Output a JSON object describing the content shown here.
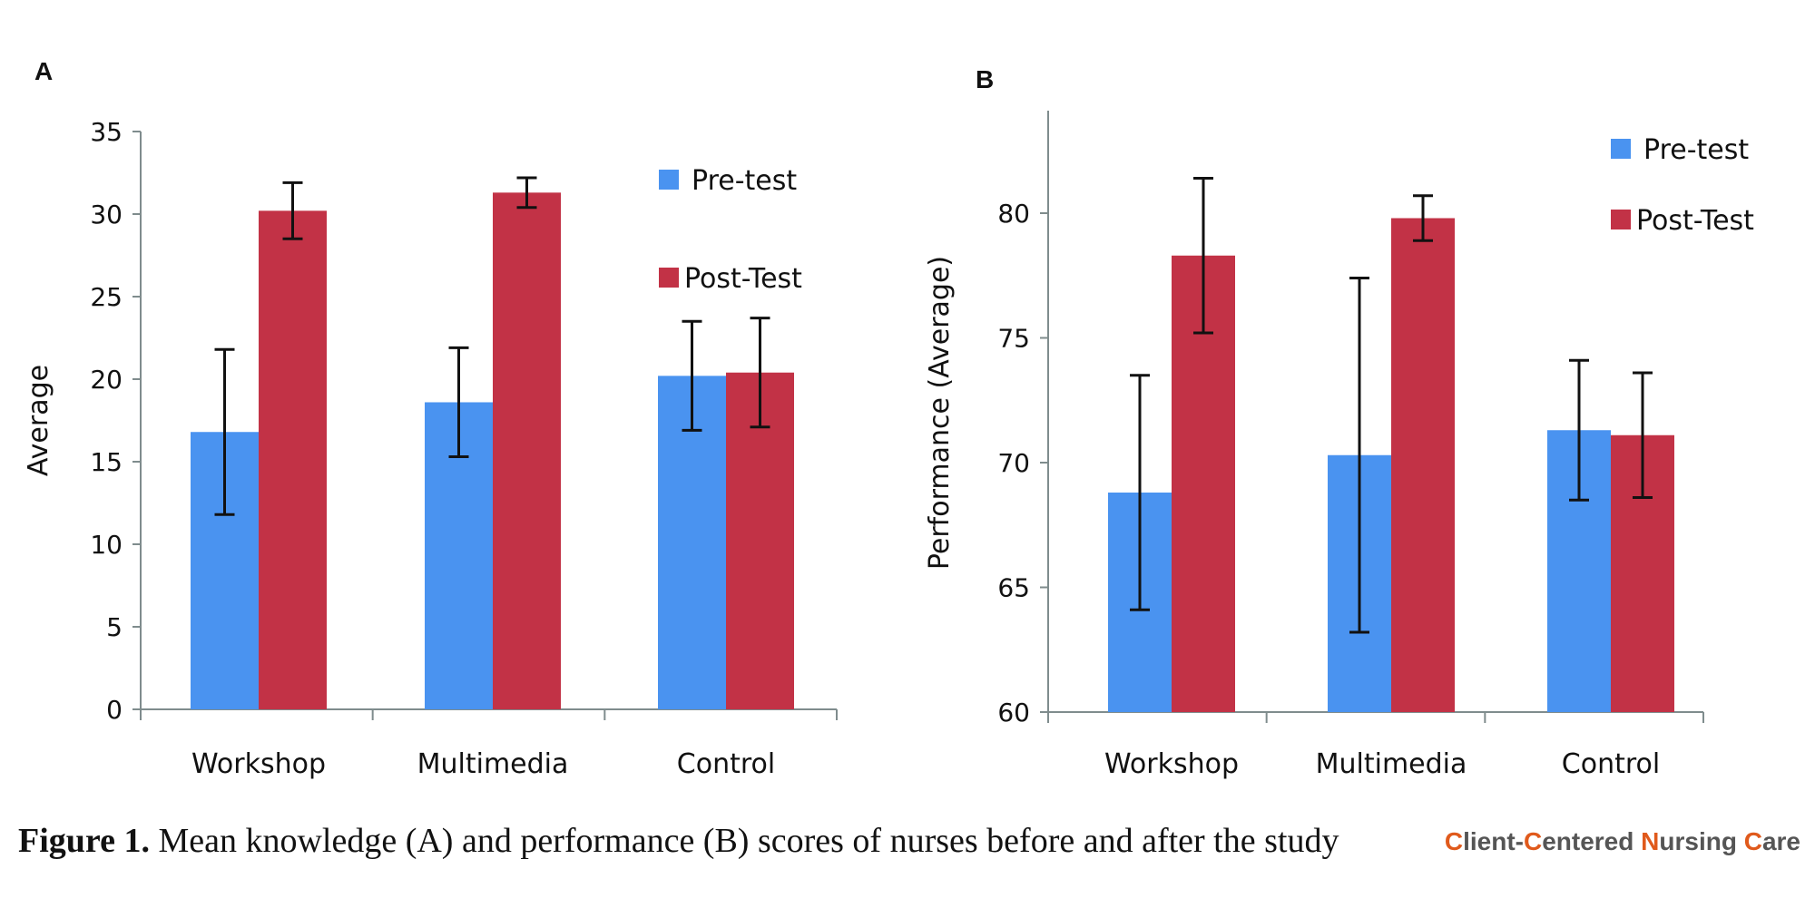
{
  "colors": {
    "pre": "#4a93f0",
    "post": "#c23246"
  },
  "chart_data": [
    {
      "type": "bar",
      "panel_label": "A",
      "categories": [
        "Workshop",
        "Multimedia",
        "Control"
      ],
      "ylabel": "Average",
      "ylim": [
        0,
        35
      ],
      "yticks": [
        0,
        5,
        10,
        15,
        20,
        25,
        30,
        35
      ],
      "legend": [
        "Pre-test",
        "Post-Test"
      ],
      "series": [
        {
          "name": "Pre-test",
          "values": [
            16.8,
            18.6,
            20.2
          ],
          "error": [
            5.0,
            3.3,
            3.3
          ]
        },
        {
          "name": "Post-Test",
          "values": [
            30.2,
            31.3,
            20.4
          ],
          "error": [
            1.7,
            0.9,
            3.3
          ]
        }
      ]
    },
    {
      "type": "bar",
      "panel_label": "B",
      "categories": [
        "Workshop",
        "Multimedia",
        "Control"
      ],
      "ylabel": "Performance (Average)",
      "ylim": [
        60,
        84
      ],
      "yticks": [
        60,
        65,
        70,
        75,
        80
      ],
      "legend": [
        "Pre-test",
        "Post-Test"
      ],
      "series": [
        {
          "name": "Pre-test",
          "values": [
            68.8,
            70.3,
            71.3
          ],
          "error": [
            4.7,
            7.1,
            2.8
          ]
        },
        {
          "name": "Post-Test",
          "values": [
            78.3,
            79.8,
            71.1
          ],
          "error": [
            3.1,
            0.9,
            2.5
          ]
        }
      ]
    }
  ],
  "caption": {
    "label": "Figure 1.",
    "text": " Mean knowledge (A) and performance (B) scores of nurses before and after the study"
  },
  "brand": {
    "text": "Client-Centered Nursing Care"
  }
}
